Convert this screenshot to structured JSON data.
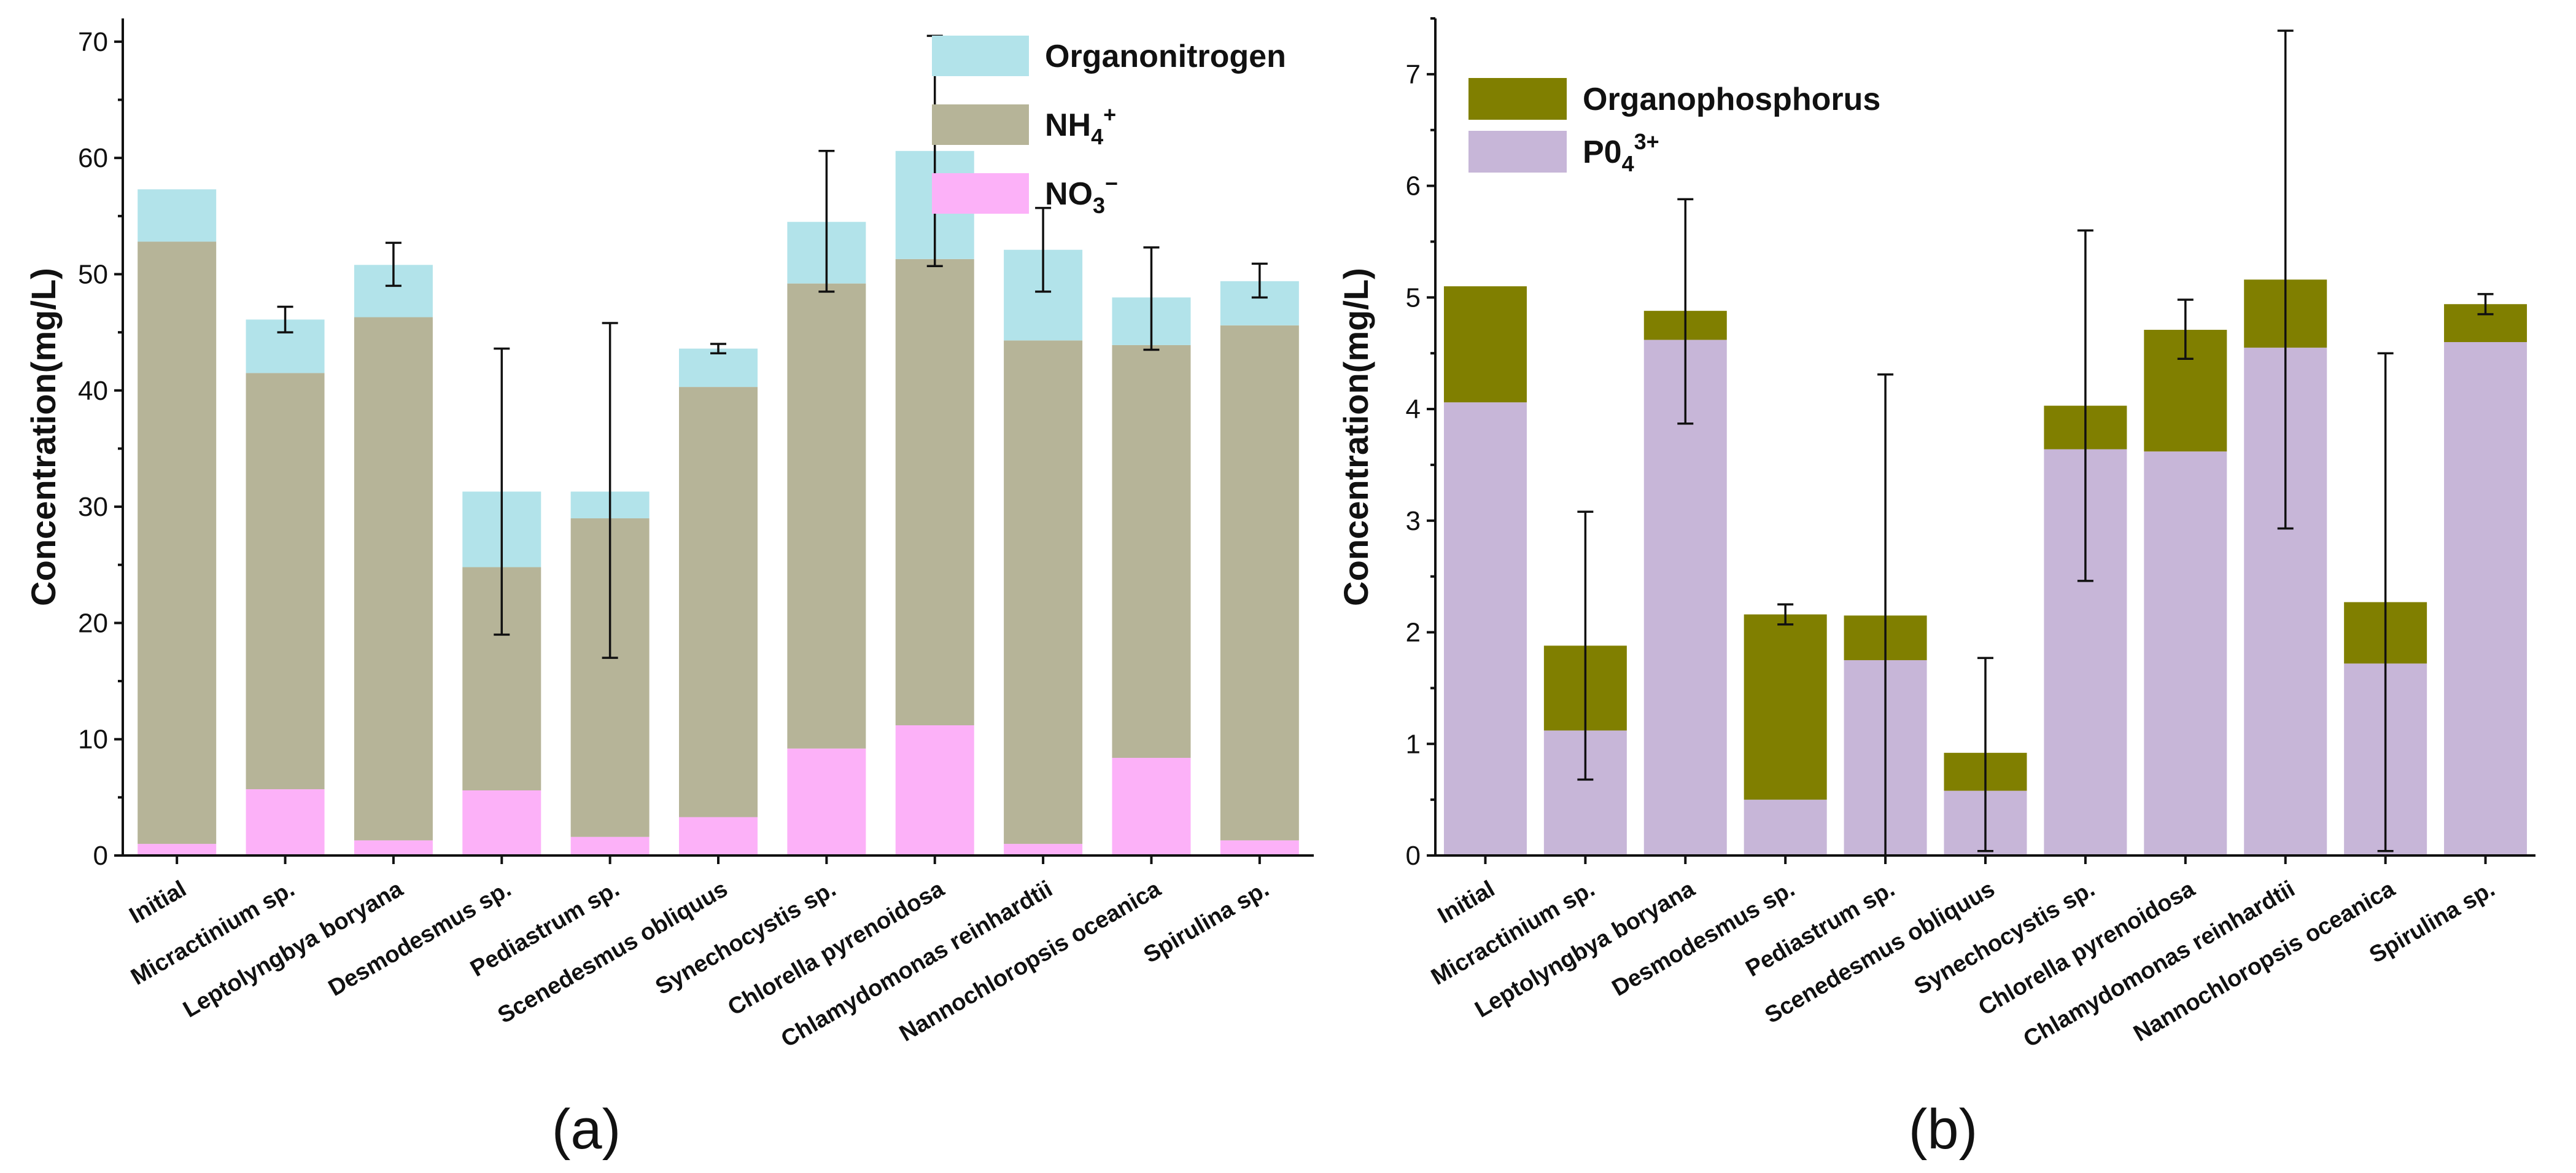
{
  "chart_data": [
    {
      "type": "bar",
      "stacked": true,
      "panel_label": "(a)",
      "ylabel": "Concentration(mg/L)",
      "ylim": [
        0,
        72
      ],
      "yticks": [
        0,
        10,
        20,
        30,
        40,
        50,
        60,
        70
      ],
      "categories": [
        "Initial",
        "Micractinium sp.",
        "Leptolyngbya boryana",
        "Desmodesmus sp.",
        "Pediastrum sp.",
        "Scenedesmus obliquus",
        "Synechocystis sp.",
        "Chlorella pyrenoidosa",
        "Chlamydomonas reinhardtii",
        "Nannochloropsis oceanica",
        "Spirulina sp."
      ],
      "series": [
        {
          "name": "NO3-",
          "legend_main": "NO",
          "legend_sub": "3",
          "legend_sup": "−",
          "color": "#fcb1f8",
          "values": [
            1.0,
            5.7,
            1.3,
            5.6,
            1.6,
            3.3,
            9.2,
            11.2,
            1.0,
            8.4,
            1.3
          ]
        },
        {
          "name": "NH4+",
          "legend_main": "NH",
          "legend_sub": "4",
          "legend_sup": "+",
          "color": "#b6b498",
          "values": [
            51.8,
            35.8,
            45.0,
            19.2,
            27.4,
            37.0,
            40.0,
            40.1,
            43.3,
            35.5,
            44.3
          ]
        },
        {
          "name": "Organonitrogen",
          "legend_main": "Organonitrogen",
          "legend_sub": "",
          "legend_sup": "",
          "color": "#b2e3ea",
          "values": [
            4.5,
            4.6,
            4.5,
            6.5,
            2.3,
            3.3,
            5.3,
            9.3,
            7.8,
            4.1,
            3.8
          ]
        }
      ],
      "legend_order": [
        "Organonitrogen",
        "NH4+",
        "NO3-"
      ],
      "totals": [
        57.3,
        46.1,
        50.8,
        31.3,
        31.3,
        43.6,
        54.5,
        60.6,
        52.1,
        48.0,
        49.4
      ],
      "error_bars": [
        null,
        [
          45.0,
          47.2
        ],
        [
          49.0,
          52.7
        ],
        [
          19.0,
          43.6
        ],
        [
          17.0,
          45.8
        ],
        [
          43.2,
          44.0
        ],
        [
          48.5,
          60.6
        ],
        [
          50.7,
          70.5
        ],
        [
          48.5,
          55.7
        ],
        [
          43.5,
          52.3
        ],
        [
          48.0,
          50.9
        ]
      ]
    },
    {
      "type": "bar",
      "stacked": true,
      "panel_label": "(b)",
      "ylabel": "Concentration(mg/L)",
      "ylim": [
        0,
        7.5
      ],
      "yticks": [
        0,
        1,
        2,
        3,
        4,
        5,
        6,
        7
      ],
      "categories": [
        "Initial",
        "Micractinium sp.",
        "Leptolyngbya boryana",
        "Desmodesmus sp.",
        "Pediastrum sp.",
        "Scenedesmus obliquus",
        "Synechocystis sp.",
        "Chlorella pyrenoidosa",
        "Chlamydomonas reinhardtii",
        "Nannochloropsis oceanica",
        "Spirulina sp."
      ],
      "series": [
        {
          "name": "PO4 3+",
          "legend_main": "P0",
          "legend_sub": "4",
          "legend_sup": "3+",
          "color": "#c7b6d8",
          "values": [
            4.06,
            1.12,
            4.62,
            0.5,
            1.75,
            0.58,
            3.64,
            3.62,
            4.55,
            1.72,
            4.6
          ]
        },
        {
          "name": "Organophosphorus",
          "legend_main": "Organophosphorus",
          "legend_sub": "",
          "legend_sup": "",
          "color": "#807f00",
          "values": [
            1.04,
            0.76,
            0.26,
            1.66,
            0.4,
            0.34,
            0.39,
            1.09,
            0.61,
            0.55,
            0.34
          ]
        }
      ],
      "legend_order": [
        "Organophosphorus",
        "PO4 3+"
      ],
      "totals": [
        5.1,
        1.88,
        4.88,
        2.16,
        2.15,
        0.92,
        4.03,
        4.71,
        5.16,
        2.27,
        4.94
      ],
      "error_bars": [
        null,
        [
          0.68,
          3.08
        ],
        [
          3.87,
          5.88
        ],
        [
          2.07,
          2.25
        ],
        [
          0.0,
          4.31
        ],
        [
          0.04,
          1.77
        ],
        [
          2.46,
          5.6
        ],
        [
          4.45,
          4.98
        ],
        [
          2.93,
          7.39
        ],
        [
          0.04,
          4.5
        ],
        [
          4.85,
          5.03
        ]
      ]
    }
  ]
}
